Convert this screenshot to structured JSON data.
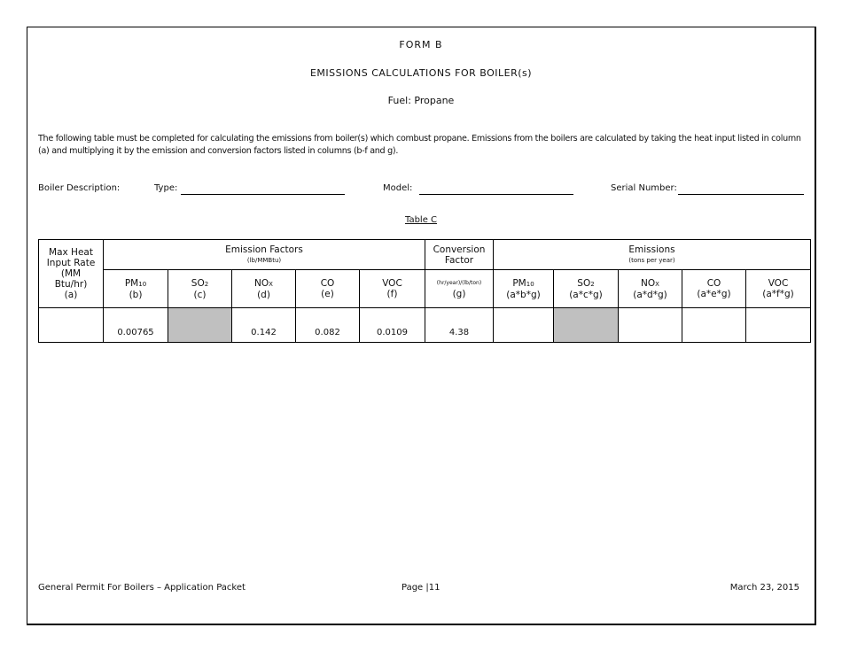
{
  "header": {
    "form": "FORM B",
    "title": "EMISSIONS CALCULATIONS FOR BOILER(s)",
    "fuel": "Fuel: Propane"
  },
  "intro": "The following table must be completed for calculating the emissions from boiler(s) which combust propane.  Emissions from the boilers are calculated by taking the heat input listed in column (a) and multiplying it by the emission and conversion factors listed in columns (b-f and g).",
  "boiler": {
    "description_label": "Boiler Description:",
    "type_label": "Type:",
    "model_label": "Model:",
    "serial_label": "Serial Number:"
  },
  "table": {
    "caption": "Table C",
    "col_a": [
      "Max Heat",
      "Input Rate",
      "(MM",
      "Btu/hr)",
      "(a)"
    ],
    "emission_factors": {
      "title": "Emission Factors",
      "units": "(lb/MMBtu)"
    },
    "conversion": {
      "title1": "Conversion",
      "title2": "Factor",
      "units": "(hr/year)/(lb/ton)",
      "letter": "(g)"
    },
    "emissions": {
      "title": "Emissions",
      "units": "(tons per year)"
    },
    "factor_cols": [
      {
        "name": "PM",
        "sub": "10",
        "letter": "(b)"
      },
      {
        "name": "SO",
        "sub": "2",
        "letter": "(c)"
      },
      {
        "name": "NO",
        "sub": "X",
        "letter": "(d)"
      },
      {
        "name": "CO",
        "sub": "",
        "letter": "(e)"
      },
      {
        "name": "VOC",
        "sub": "",
        "letter": "(f)"
      }
    ],
    "emission_cols": [
      {
        "name": "PM",
        "sub": "10",
        "formula": "(a*b*g)"
      },
      {
        "name": "SO",
        "sub": "2",
        "formula": "(a*c*g)"
      },
      {
        "name": "NO",
        "sub": "X",
        "formula": "(a*d*g)"
      },
      {
        "name": "CO",
        "sub": "",
        "formula": "(a*e*g)"
      },
      {
        "name": "VOC",
        "sub": "",
        "formula": "(a*f*g)"
      }
    ],
    "values": {
      "a": "",
      "b": "0.00765",
      "c": "",
      "d": "0.142",
      "e": "0.082",
      "f": "0.0109",
      "g": "4.38"
    },
    "shaded_color": "#c0c0c0"
  },
  "footer": {
    "left": "General Permit For Boilers – Application Packet",
    "center": "Page |11",
    "right": "March 23, 2015"
  }
}
